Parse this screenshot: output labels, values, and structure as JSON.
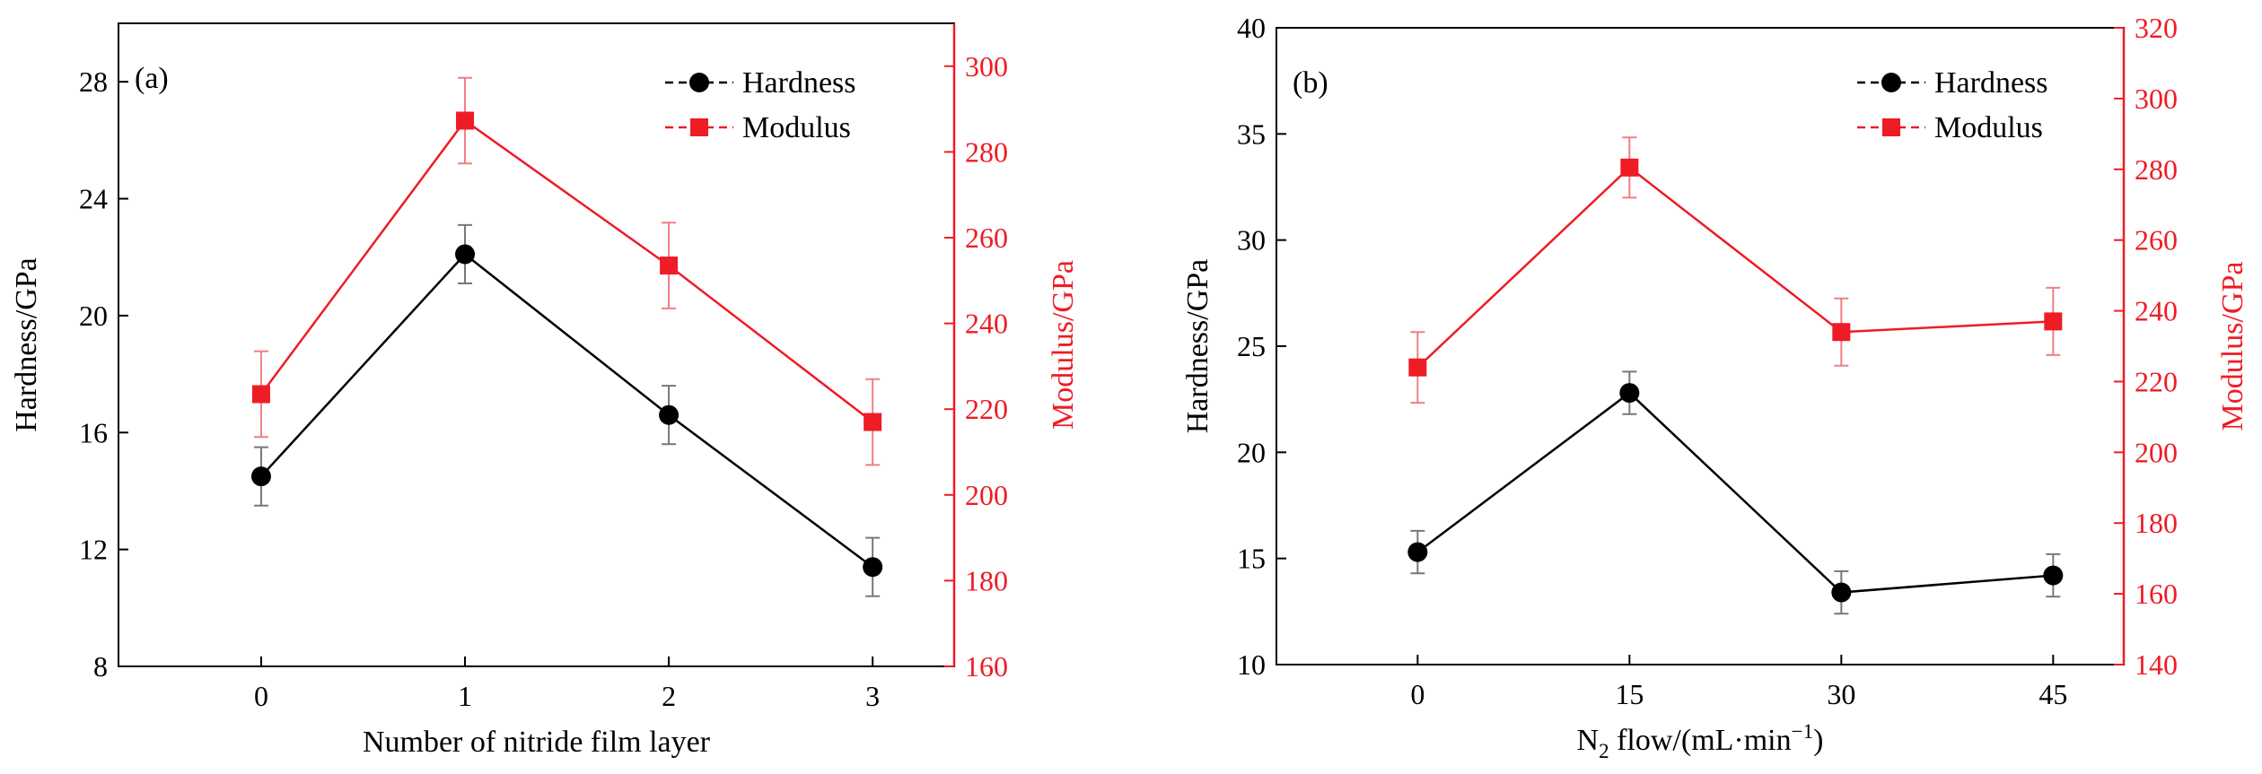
{
  "chart_data": [
    {
      "type": "line",
      "panel_label": "(a)",
      "xlabel": "Number of nitride film layer",
      "categories": [
        "0",
        "1",
        "2",
        "3"
      ],
      "x": [
        0,
        1,
        2,
        3
      ],
      "xlim": [
        -0.7,
        3.4
      ],
      "ylabel_left": "Hardness/GPa",
      "ylim_left": [
        8,
        30
      ],
      "yticks_left": [
        8,
        12,
        16,
        20,
        24,
        28
      ],
      "ylabel_right": "Modulus/GPa",
      "ylim_right": [
        160,
        310
      ],
      "yticks_right": [
        160,
        180,
        200,
        220,
        240,
        260,
        280,
        300
      ],
      "legend_position": "top-right",
      "series": [
        {
          "name": "Hardness",
          "axis": "left",
          "color": "#000000",
          "marker": "circle",
          "values": [
            14.5,
            22.1,
            16.6,
            11.4
          ],
          "errors": [
            1.0,
            1.0,
            1.0,
            1.0
          ]
        },
        {
          "name": "Modulus",
          "axis": "right",
          "color": "#ee1c25",
          "marker": "square",
          "values": [
            223.5,
            287.3,
            253.5,
            217.0
          ],
          "errors": [
            10.0,
            10.0,
            10.0,
            10.0
          ]
        }
      ]
    },
    {
      "type": "line",
      "panel_label": "(b)",
      "xlabel_main": "N",
      "xlabel_sub": "2",
      "xlabel_rest": " flow/(mL·min",
      "xlabel_sup": "−1",
      "xlabel_end": ")",
      "categories": [
        "0",
        "15",
        "30",
        "45"
      ],
      "x": [
        0,
        15,
        30,
        45
      ],
      "xlim": [
        -10,
        50
      ],
      "ylabel_left": "Hardness/GPa",
      "ylim_left": [
        10,
        40
      ],
      "yticks_left": [
        10,
        15,
        20,
        25,
        30,
        35,
        40
      ],
      "ylabel_right": "Modulus/GPa",
      "ylim_right": [
        140,
        320
      ],
      "yticks_right": [
        140,
        160,
        180,
        200,
        220,
        240,
        260,
        280,
        300,
        320
      ],
      "legend_position": "top-right",
      "series": [
        {
          "name": "Hardness",
          "axis": "left",
          "color": "#000000",
          "marker": "circle",
          "values": [
            15.3,
            22.8,
            13.4,
            14.2
          ],
          "errors": [
            1.0,
            1.0,
            1.0,
            1.0
          ]
        },
        {
          "name": "Modulus",
          "axis": "right",
          "color": "#ee1c25",
          "marker": "square",
          "values": [
            224.0,
            280.5,
            234.0,
            237.0
          ],
          "errors": [
            10.0,
            8.5,
            9.5,
            9.5
          ]
        }
      ]
    }
  ]
}
